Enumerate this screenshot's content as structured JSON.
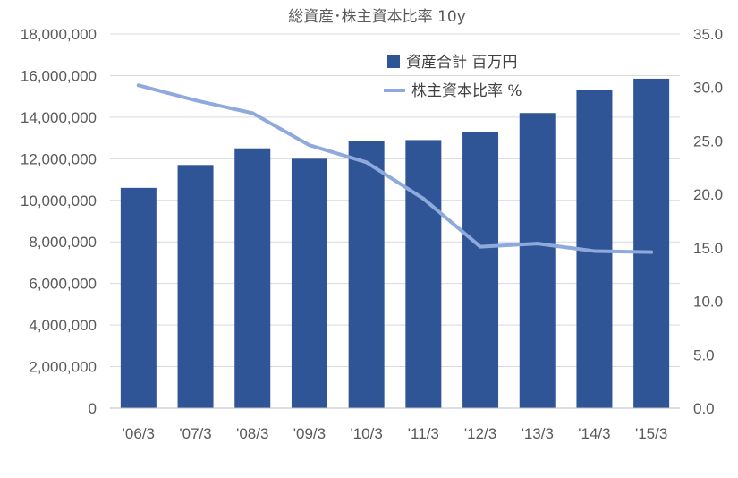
{
  "chart_data": {
    "type": "bar",
    "title": "総資産･株主資本比率  10y",
    "categories": [
      "'06/3",
      "'07/3",
      "'08/3",
      "'09/3",
      "'10/3",
      "'11/3",
      "'12/3",
      "'13/3",
      "'14/3",
      "'15/3"
    ],
    "series": [
      {
        "name": "資産合計 百万円",
        "type": "bar",
        "axis": "left",
        "color": "#2F5597",
        "values": [
          10600000,
          11700000,
          12500000,
          12000000,
          12850000,
          12900000,
          13300000,
          14200000,
          15300000,
          15850000
        ]
      },
      {
        "name": "株主資本比率 %",
        "type": "line",
        "axis": "right",
        "color": "#8EA9DB",
        "values": [
          30.2,
          28.8,
          27.6,
          24.6,
          23.0,
          19.6,
          15.1,
          15.4,
          14.7,
          14.6
        ]
      }
    ],
    "y_left": {
      "range": [
        0,
        18000000
      ],
      "ticks": [
        "0",
        "2,000,000",
        "4,000,000",
        "6,000,000",
        "8,000,000",
        "10,000,000",
        "12,000,000",
        "14,000,000",
        "16,000,000",
        "18,000,000"
      ]
    },
    "y_right": {
      "range": [
        0,
        35
      ],
      "ticks": [
        "0.0",
        "5.0",
        "10.0",
        "15.0",
        "20.0",
        "25.0",
        "30.0",
        "35.0"
      ]
    },
    "grid": true,
    "legend": "top-right (inside plot)"
  }
}
